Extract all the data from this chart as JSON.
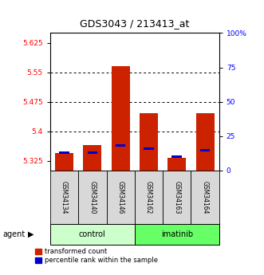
{
  "title": "GDS3043 / 213413_at",
  "samples": [
    "GSM34134",
    "GSM34140",
    "GSM34146",
    "GSM34162",
    "GSM34163",
    "GSM34164"
  ],
  "groups": [
    "control",
    "control",
    "control",
    "imatinib",
    "imatinib",
    "imatinib"
  ],
  "red_values": [
    5.345,
    5.365,
    5.565,
    5.445,
    5.332,
    5.445
  ],
  "ymin": 5.3,
  "ymax": 5.65,
  "yticks_red": [
    5.325,
    5.4,
    5.475,
    5.55,
    5.625
  ],
  "yticks_blue": [
    0,
    25,
    50,
    75,
    100
  ],
  "blue_pct": [
    13,
    13,
    18,
    16,
    10,
    15
  ],
  "control_color": "#ccffcc",
  "imatinib_color": "#66ff66",
  "bar_color": "#cc2200",
  "dot_color": "#0000cc",
  "legend_red": "transformed count",
  "legend_blue": "percentile rank within the sample",
  "group_label": "agent",
  "grid_lines": [
    5.4,
    5.475,
    5.55
  ]
}
